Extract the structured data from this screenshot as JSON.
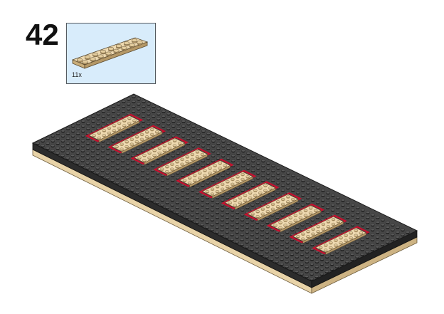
{
  "step": {
    "number": "42"
  },
  "parts_callout": {
    "count_label": "11x",
    "part_icon": "tan-plate-2x8-icon",
    "part_color": "#e4cd9e"
  },
  "model": {
    "baseplate_color": "#3b3b3b",
    "tile_color": "#e4cd9e",
    "highlight_color": "#c8102e",
    "new_plates_count": 11
  }
}
